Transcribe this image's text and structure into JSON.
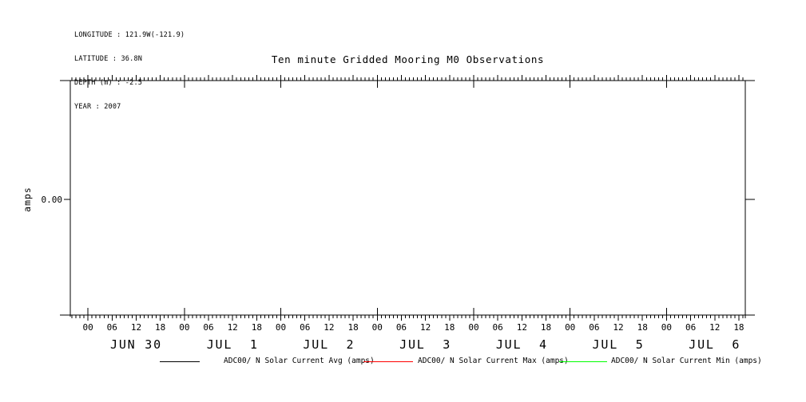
{
  "header": {
    "meta_lines": [
      "LONGITUDE : 121.9W(-121.9)",
      "LATITUDE : 36.8N",
      "DEPTH (m) : -2.5",
      "YEAR : 2007"
    ]
  },
  "chart_data": {
    "type": "line",
    "title": "Ten minute Gridded Mooring M0 Observations",
    "ylabel": "amps",
    "xlabel": "",
    "grid": false,
    "y_axis": {
      "ticks": [
        {
          "value": 0.0,
          "label": "0.00"
        }
      ]
    },
    "x_axis": {
      "unit": "hours from JUN 30 00:00",
      "start_hour": -4.4,
      "end_hour": 163.6,
      "minor_tick_step": 1,
      "hour_label_step": 6,
      "hour_labels": [
        "00",
        "06",
        "12",
        "18"
      ],
      "days": [
        "JUN 30",
        "JUL  1",
        "JUL  2",
        "JUL  3",
        "JUL  4",
        "JUL  5",
        "JUL  6"
      ]
    },
    "series": [
      {
        "name": "ADC00/ N Solar Current Avg (amps)",
        "color": "#000000",
        "points": []
      },
      {
        "name": "ADC00/ N Solar Current Max (amps)",
        "color": "#ff0000",
        "points": []
      },
      {
        "name": "ADC00/ N Solar Current Min (amps)",
        "color": "#00ff00",
        "points": []
      }
    ],
    "legend_position": "bottom"
  },
  "legend": {
    "items": [
      {
        "label": "ADC00/ N Solar Current Avg (amps)",
        "color": "#000000"
      },
      {
        "label": "ADC00/ N Solar Current Max (amps)",
        "color": "#ff0000"
      },
      {
        "label": "ADC00/ N Solar Current Min (amps)",
        "color": "#00ff00"
      }
    ]
  }
}
